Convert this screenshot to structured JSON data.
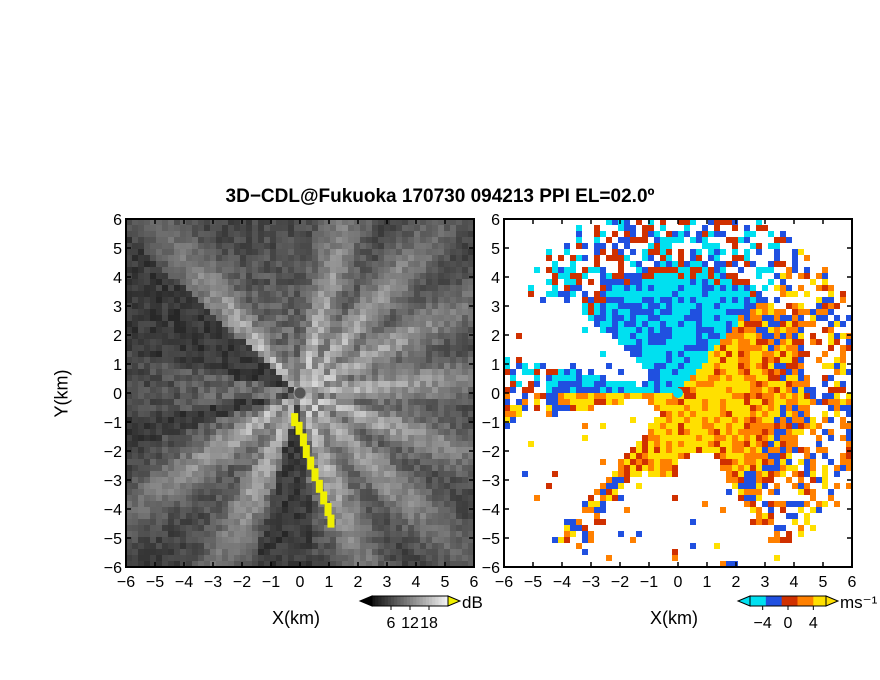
{
  "title": "3D−CDL@Fukuoka 170730 094213 PPI EL=02.0º",
  "chart_data": [
    {
      "type": "heatmap",
      "panel": "left",
      "quantity": "echo intensity",
      "xlabel": "X(km)",
      "ylabel": "Y(km)",
      "xlim": [
        -6,
        6
      ],
      "ylim": [
        -6,
        6
      ],
      "xticks": [
        "−6",
        "−5",
        "−4",
        "−3",
        "−2",
        "−1",
        "0",
        "1",
        "2",
        "3",
        "4",
        "5",
        "6"
      ],
      "yticks": [
        "6",
        "5",
        "4",
        "3",
        "2",
        "1",
        "0",
        "−1",
        "−2",
        "−3",
        "−4",
        "−5",
        "−6"
      ],
      "colorbar": {
        "unit": "dB",
        "ticks": [
          "6",
          "12",
          "18"
        ],
        "range": [
          0,
          24
        ],
        "colormap": "grayscale",
        "overflow_color": "#f0f000"
      },
      "background_color": "#1a1a1a",
      "bright_sectors_deg": [
        15,
        40,
        62,
        85,
        110,
        135,
        160,
        205,
        235,
        320
      ],
      "dark_sectors_deg": [
        [
          283,
          312
        ],
        [
          175,
          195
        ],
        [
          252,
          262
        ]
      ]
    },
    {
      "type": "heatmap",
      "panel": "right",
      "quantity": "radial velocity",
      "xlabel": "X(km)",
      "ylabel": "",
      "xlim": [
        -6,
        6
      ],
      "ylim": [
        -6,
        6
      ],
      "xticks": [
        "−6",
        "−5",
        "−4",
        "−3",
        "−2",
        "−1",
        "0",
        "1",
        "2",
        "3",
        "4",
        "5",
        "6"
      ],
      "yticks": [
        "6",
        "5",
        "4",
        "3",
        "2",
        "1",
        "0",
        "−1",
        "−2",
        "−3",
        "−4",
        "−5",
        "−6"
      ],
      "colorbar": {
        "unit": "ms⁻¹",
        "ticks": [
          "−4",
          "0",
          "4"
        ],
        "range": [
          -6,
          6
        ],
        "colors": [
          "#00e0f0",
          "#2050e0",
          "#d03000",
          "#ff8000",
          "#ffe000"
        ]
      },
      "approaching_sector_deg": [
        -90,
        40
      ],
      "receding_sector_deg": [
        40,
        270
      ]
    }
  ]
}
